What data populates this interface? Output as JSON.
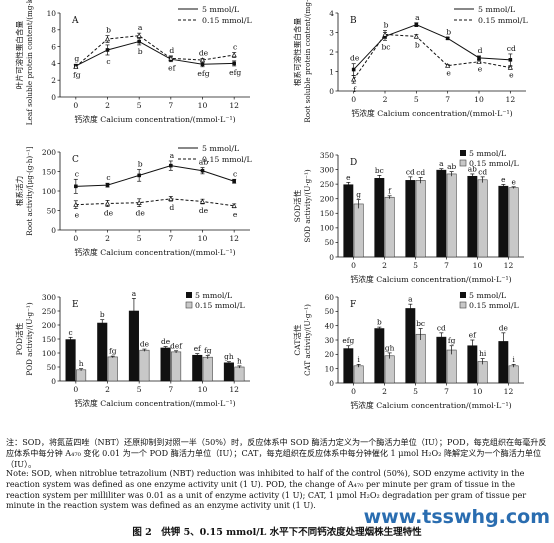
{
  "chart_data": [
    {
      "type": "line",
      "panel_letter": "A",
      "ylabel_cn": "叶片可溶性蛋白含量",
      "ylabel_en": "Leaf soluble protein content/(mg·kg⁻¹)",
      "xlabel": "钙浓度 Calcium concentration/(mmol·L⁻¹)",
      "categories": [
        "0",
        "2",
        "5",
        "7",
        "10",
        "12"
      ],
      "ylim": [
        0,
        10
      ],
      "yticks": [
        0,
        2,
        4,
        6,
        8,
        10
      ],
      "series": [
        {
          "name": "5 mmol/L",
          "values": [
            3.7,
            5.6,
            6.6,
            4.5,
            3.9,
            4.0
          ],
          "err": [
            0.2,
            0.6,
            0.4,
            0.3,
            0.3,
            0.3
          ],
          "letters": [
            "g",
            "c",
            "b",
            "ef",
            "efg",
            "efg"
          ]
        },
        {
          "name": "0.15 mmol/L",
          "values": [
            3.6,
            6.9,
            7.3,
            4.6,
            4.4,
            5.0
          ],
          "err": [
            0.2,
            0.4,
            0.3,
            0.3,
            0.2,
            0.3
          ],
          "letters": [
            "fg",
            "b",
            "a",
            "d",
            "de",
            "c"
          ]
        }
      ]
    },
    {
      "type": "line",
      "panel_letter": "B",
      "ylabel_cn": "根系可溶性蛋白含量",
      "ylabel_en": "Root soluble protein content/(mg·kg⁻¹)",
      "xlabel": "钙浓度 Calcium concentration/(mmol·L⁻¹)",
      "categories": [
        "0",
        "2",
        "5",
        "7",
        "10",
        "12"
      ],
      "ylim": [
        0,
        4
      ],
      "yticks": [
        0,
        1,
        2,
        3,
        4
      ],
      "series": [
        {
          "name": "5 mmol/L",
          "values": [
            1.1,
            2.8,
            3.4,
            2.7,
            1.7,
            1.6
          ],
          "err": [
            0.3,
            0.2,
            0.1,
            0.05,
            0.1,
            0.3
          ],
          "letters": [
            "de",
            "bc",
            "a",
            "b",
            "d",
            "cd"
          ]
        },
        {
          "name": "0.15 mmol/L",
          "values": [
            0.6,
            2.9,
            2.8,
            1.3,
            1.5,
            1.2
          ],
          "err": [
            0.2,
            0.2,
            0.1,
            0.05,
            0.05,
            0.05
          ],
          "letters": [
            "f",
            "b",
            "b",
            "e",
            "e",
            "e"
          ]
        }
      ]
    },
    {
      "type": "line",
      "panel_letter": "C",
      "ylabel_cn": "根系活力",
      "ylabel_en": "Root activity/[μg·(g·h)⁻¹]",
      "xlabel": "钙浓度 Calcium concentration/(mmol·L⁻¹)",
      "categories": [
        "0",
        "2",
        "5",
        "7",
        "10",
        "12"
      ],
      "ylim": [
        0,
        200
      ],
      "yticks": [
        0,
        50,
        100,
        150,
        200
      ],
      "series": [
        {
          "name": "5 mmol/L",
          "values": [
            112,
            115,
            140,
            165,
            152,
            125
          ],
          "err": [
            18,
            5,
            15,
            12,
            8,
            5
          ],
          "letters": [
            "c",
            "c",
            "b",
            "a",
            "ab",
            "c"
          ]
        },
        {
          "name": "0.15 mmol/L",
          "values": [
            65,
            68,
            70,
            80,
            73,
            62
          ],
          "err": [
            10,
            8,
            10,
            6,
            6,
            5
          ],
          "letters": [
            "e",
            "de",
            "de",
            "d",
            "de",
            "e"
          ]
        }
      ]
    },
    {
      "type": "bar",
      "panel_letter": "D",
      "ylabel_cn": "SOD活性",
      "ylabel_en": "SOD activity/(U·g⁻¹)",
      "xlabel": "钙浓度 Calcium concentration/(mmol·L⁻¹)",
      "categories": [
        "0",
        "2",
        "5",
        "7",
        "10",
        "12"
      ],
      "ylim": [
        0,
        350
      ],
      "yticks": [
        0,
        50,
        100,
        150,
        200,
        250,
        300,
        350
      ],
      "series": [
        {
          "name": "5 mmol/L",
          "values": [
            248,
            270,
            263,
            298,
            277,
            243
          ],
          "err": [
            8,
            10,
            12,
            5,
            8,
            6
          ],
          "letters": [
            "e",
            "bc",
            "cd",
            "a",
            "ab",
            "e"
          ]
        },
        {
          "name": "0.15 mmol/L",
          "values": [
            182,
            205,
            263,
            285,
            265,
            238
          ],
          "err": [
            15,
            5,
            10,
            8,
            10,
            3
          ],
          "letters": [
            "g",
            "f",
            "cd",
            "ab",
            "cd",
            "e"
          ]
        }
      ]
    },
    {
      "type": "bar",
      "panel_letter": "E",
      "ylabel_cn": "POD活性",
      "ylabel_en": "POD activity/(U·g⁻¹)",
      "xlabel": "钙浓度 Calcium concentration/(mmol·L⁻¹)",
      "categories": [
        "0",
        "2",
        "5",
        "7",
        "10",
        "12"
      ],
      "ylim": [
        0,
        300
      ],
      "yticks": [
        0,
        50,
        100,
        150,
        200,
        250,
        300
      ],
      "series": [
        {
          "name": "5 mmol/L",
          "values": [
            148,
            207,
            250,
            118,
            92,
            65
          ],
          "err": [
            8,
            12,
            45,
            5,
            6,
            4
          ],
          "letters": [
            "c",
            "b",
            "a",
            "de",
            "ef",
            "gh"
          ]
        },
        {
          "name": "0.15 mmol/L",
          "values": [
            40,
            86,
            110,
            104,
            85,
            50
          ],
          "err": [
            4,
            3,
            4,
            4,
            6,
            4
          ],
          "letters": [
            "h",
            "fg",
            "de",
            "def",
            "fg",
            "h"
          ]
        }
      ]
    },
    {
      "type": "bar",
      "panel_letter": "F",
      "ylabel_cn": "CAT活性",
      "ylabel_en": "CAT activity/(U·g⁻¹)",
      "xlabel": "钙浓度 Calcium concentration/(mmol·L⁻¹)",
      "categories": [
        "0",
        "2",
        "5",
        "7",
        "10",
        "12"
      ],
      "ylim": [
        0,
        60
      ],
      "yticks": [
        0,
        10,
        20,
        30,
        40,
        50,
        60
      ],
      "series": [
        {
          "name": "5 mmol/L",
          "values": [
            24,
            38,
            52,
            32,
            26,
            29
          ],
          "err": [
            2,
            1,
            3,
            3,
            4,
            6
          ],
          "letters": [
            "efg",
            "b",
            "a",
            "cd",
            "ef",
            "de"
          ]
        },
        {
          "name": "0.15 mmol/L",
          "values": [
            12,
            19,
            34,
            23,
            15,
            12
          ],
          "err": [
            1,
            2,
            4,
            3,
            2,
            1
          ],
          "letters": [
            "i",
            "gh",
            "bc",
            "fg",
            "hi",
            "i"
          ]
        }
      ]
    }
  ],
  "note_cn": "注：SOD，将氮蓝四唑（NBT）还原抑制到对照一半（50%）时，反应体系中 SOD 酶活力定义为一个酶活力单位（IU）；POD，每克组织在每毫升反应体系中每分钟 A₄₇₀ 变化 0.01 为一个 POD 酶活力单位（IU）；CAT，每克组织在反应体系中每分钟催化 1 μmol H₂O₂ 降解定义为一个酶活力单位（IU）。",
  "note_en": "Note: SOD, when nitroblue tetrazolium (NBT) reduction was inhibited to half of the control (50%), SOD enzyme activity in the reaction system was defined as one enzyme activity unit (1 U). POD, the change of A₄₇₀ per minute per gram of tissue in the reaction system per milliliter was 0.01 as a unit of enzyme activity (1 U); CAT, 1 μmol H₂O₂ degradation per gram of tissue per minute in the reaction system was defined as an enzyme activity unit (1 U).",
  "caption": "图 2　供钾 5、0.15 mmol/L 水平下不同钙浓度处理烟株生理特性",
  "watermark": "www.tsswhg.com",
  "colors": {
    "series1": "#111111",
    "series2_fill": "#c8c8c8",
    "series2_stroke": "#444444"
  }
}
